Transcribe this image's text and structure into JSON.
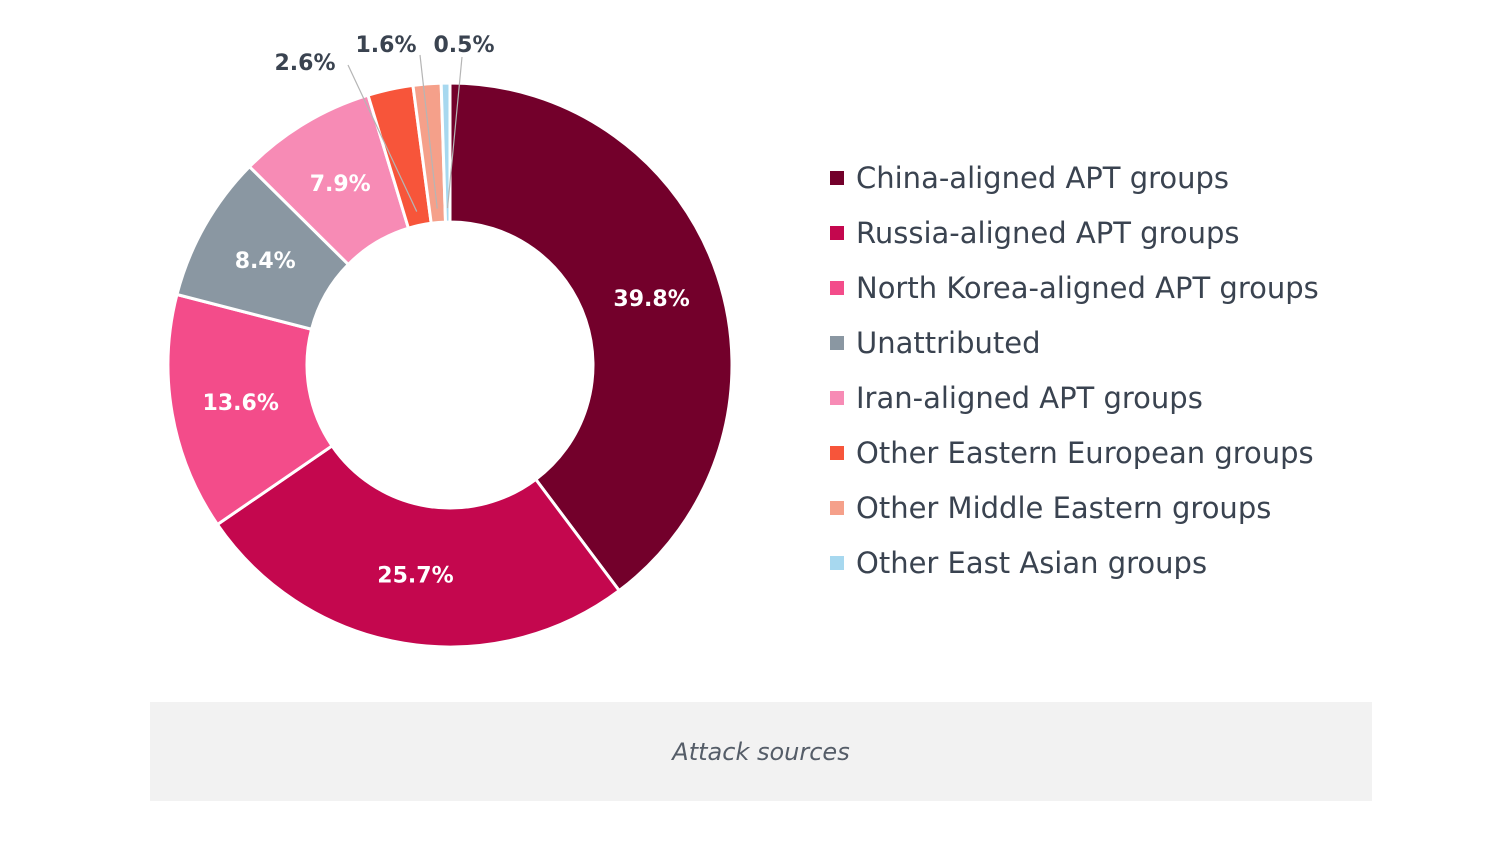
{
  "chart_data": {
    "type": "pie",
    "donut": true,
    "categories": [
      "China-aligned APT groups",
      "Russia-aligned APT groups",
      "North Korea-aligned APT groups",
      "Unattributed",
      "Iran-aligned APT groups",
      "Other Eastern European groups",
      "Other Middle Eastern groups",
      "Other East Asian groups"
    ],
    "values": [
      39.8,
      25.7,
      13.6,
      8.4,
      7.9,
      2.6,
      1.6,
      0.5
    ],
    "labels": [
      "39.8%",
      "25.7%",
      "13.6%",
      "8.4%",
      "7.9%",
      "2.6%",
      "1.6%",
      "0.5%"
    ],
    "colors": [
      "#73002b",
      "#c4074e",
      "#f34c8a",
      "#8a97a2",
      "#f78bb5",
      "#f7553a",
      "#f5a08a",
      "#a7d8ef"
    ],
    "legend_position": "right",
    "caption": "Attack sources"
  }
}
